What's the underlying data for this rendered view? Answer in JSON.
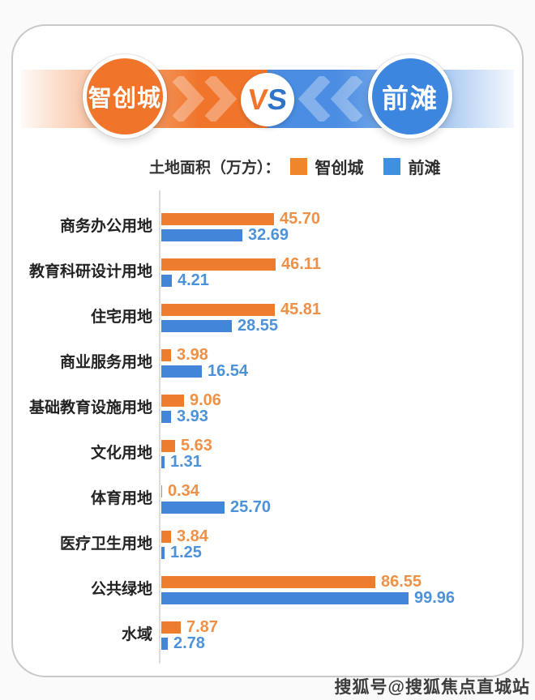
{
  "header": {
    "left_badge": "智创城",
    "vs": {
      "v": "V",
      "s": "S"
    },
    "right_badge": "前滩"
  },
  "legend": {
    "title": "土地面积（万方）：",
    "series": [
      {
        "label": "智创城",
        "color": "#f0862b"
      },
      {
        "label": "前滩",
        "color": "#4090e2"
      }
    ]
  },
  "chart_data": {
    "type": "bar",
    "orientation": "horizontal",
    "title": "土地面积（万方）",
    "unit": "万方",
    "xlim": [
      0,
      100
    ],
    "grid": false,
    "legend_position": "top",
    "categories": [
      "商务办公用地",
      "教育科研设计用地",
      "住宅用地",
      "商业服务用地",
      "基础教育设施用地",
      "文化用地",
      "体育用地",
      "医疗卫生用地",
      "公共绿地",
      "水域"
    ],
    "series": [
      {
        "name": "智创城",
        "bar_color": "#ee7c2d",
        "value_color": "#ee9147",
        "values": [
          45.7,
          46.11,
          45.81,
          3.98,
          9.06,
          5.63,
          0.34,
          3.84,
          86.55,
          7.87
        ],
        "labels": [
          "45.70",
          "46.11",
          "45.81",
          "3.98",
          "9.06",
          "5.63",
          "0.34",
          "3.84",
          "86.55",
          "7.87"
        ]
      },
      {
        "name": "前滩",
        "bar_color": "#4285d9",
        "value_color": "#4d92d8",
        "values": [
          32.69,
          4.21,
          28.55,
          16.54,
          3.93,
          1.31,
          25.7,
          1.25,
          99.96,
          2.78
        ],
        "labels": [
          "32.69",
          "4.21",
          "28.55",
          "16.54",
          "3.93",
          "1.31",
          "25.70",
          "1.25",
          "99.96",
          "2.78"
        ]
      }
    ]
  },
  "watermark": {
    "text": "搜狐号@搜狐焦点直城站"
  }
}
